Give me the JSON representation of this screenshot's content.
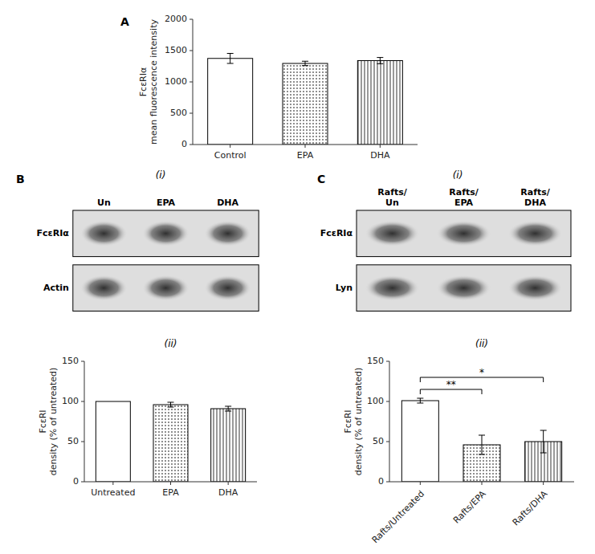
{
  "chart_data": [
    {
      "type": "bar",
      "title": "A",
      "categories": [
        "Control",
        "EPA",
        "DHA"
      ],
      "values": [
        1375,
        1295,
        1340
      ],
      "errors": [
        80,
        35,
        50
      ],
      "y_label": "FcεRIα\nmean fluorescence intensity",
      "ylim": [
        0,
        2000
      ],
      "yticks": [
        0,
        500,
        1000,
        1500,
        2000
      ],
      "color": "#000000"
    },
    {
      "type": "blot",
      "title": "B",
      "subtitle": "(i)",
      "categories": [
        "Un",
        "EPA",
        "DHA"
      ],
      "annotations": [
        "FcεRIα",
        "Actin"
      ]
    },
    {
      "type": "blot",
      "title": "C",
      "subtitle": "(i)",
      "categories": [
        "Rafts/\nUn",
        "Rafts/\nEPA",
        "Rafts/\nDHA"
      ],
      "annotations": [
        "FcεRIα",
        "Lyn"
      ]
    },
    {
      "type": "bar",
      "title": "(ii)",
      "categories": [
        "Untreated",
        "EPA",
        "DHA"
      ],
      "values": [
        100,
        96,
        91
      ],
      "errors": [
        0,
        3.0,
        3.0
      ],
      "y_label": "FcεRI\ndensity (% of untreated)",
      "ylim": [
        0,
        150
      ],
      "yticks": [
        0,
        50,
        100,
        150
      ],
      "color": "#000000"
    },
    {
      "type": "bar",
      "title": "(ii)",
      "categories": [
        "Rafts/Untreated",
        "Rafts/EPA",
        "Rafts/DHA"
      ],
      "values": [
        101,
        46,
        50
      ],
      "errors": [
        3,
        12,
        14
      ],
      "y_label": "FcεRI\ndensity (% of untreated)",
      "ylim": [
        0,
        150
      ],
      "yticks": [
        0,
        50,
        100,
        150
      ],
      "color": "#000000",
      "annotations": [
        {
          "x1": "Rafts/Untreated",
          "x2": "Rafts/EPA",
          "y": 115,
          "label": "**"
        },
        {
          "x1": "Rafts/Untreated",
          "x2": "Rafts/DHA",
          "y": 130,
          "label": "*"
        }
      ]
    }
  ]
}
